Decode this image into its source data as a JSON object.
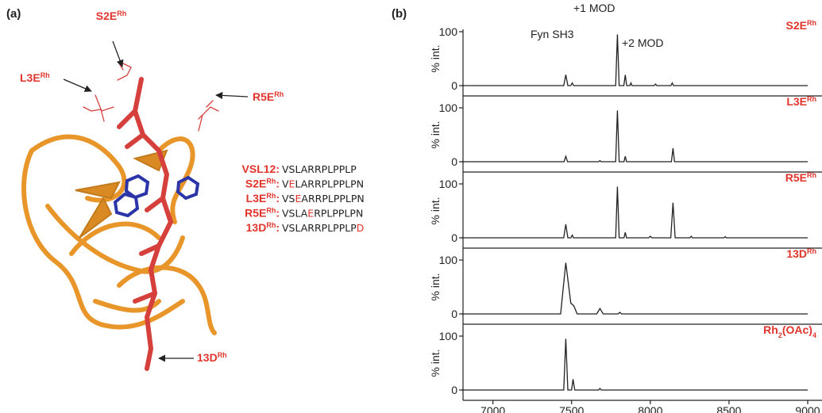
{
  "panel_a": {
    "label": "(a)",
    "callouts": [
      [
        {
          "text": "S2E"
        },
        {
          "text": "Rh",
          "sup": true
        }
      ],
      [
        {
          "text": "L3E"
        },
        {
          "text": "Rh",
          "sup": true
        }
      ],
      [
        {
          "text": "R5E"
        },
        {
          "text": "Rh",
          "sup": true
        }
      ],
      [
        {
          "text": "13D"
        },
        {
          "text": "Rh",
          "sup": true
        }
      ]
    ],
    "sequences": [
      {
        "name": [
          {
            "text": "VSL12:"
          }
        ],
        "parts": [
          {
            "text": "VSLARRPLPPLP"
          }
        ]
      },
      {
        "name": [
          {
            "text": "S2E"
          },
          {
            "text": "Rh",
            "sup": true
          },
          {
            "text": ":"
          }
        ],
        "parts": [
          {
            "text": "V"
          },
          {
            "text": "E",
            "mutated": true
          },
          {
            "text": "LARRPLPPLPN"
          }
        ]
      },
      {
        "name": [
          {
            "text": "L3E"
          },
          {
            "text": "Rh",
            "sup": true
          },
          {
            "text": ":"
          }
        ],
        "parts": [
          {
            "text": "VS"
          },
          {
            "text": "E",
            "mutated": true
          },
          {
            "text": "ARRPLPPLPN"
          }
        ]
      },
      {
        "name": [
          {
            "text": "R5E"
          },
          {
            "text": "Rh",
            "sup": true
          },
          {
            "text": ":"
          }
        ],
        "parts": [
          {
            "text": "VSLA"
          },
          {
            "text": "E",
            "mutated": true
          },
          {
            "text": "RPLPPLPN"
          }
        ]
      },
      {
        "name": [
          {
            "text": "13D"
          },
          {
            "text": "Rh",
            "sup": true
          },
          {
            "text": ":"
          }
        ],
        "parts": [
          {
            "text": "VSLARRPLPPLP"
          },
          {
            "text": "D",
            "mutated": true
          }
        ]
      }
    ]
  },
  "panel_b": {
    "label": "(b)"
  },
  "chart_data": [
    {
      "type": "line",
      "title": [
        {
          "text": "S2E"
        },
        {
          "text": "Rh",
          "sup": true
        }
      ],
      "ylabel": "% int.",
      "color": "#222222",
      "annotations": [
        "Fyn SH3",
        "+1 MOD",
        "+2 MOD"
      ],
      "x": [
        6800,
        7450,
        7463,
        7476,
        7495,
        7504,
        7513,
        7780,
        7791,
        7802,
        7832,
        7841,
        7850,
        7870,
        7877,
        7884,
        8025,
        8033,
        8041,
        8131,
        8139,
        8147,
        9000
      ],
      "values": [
        0,
        0,
        20,
        0,
        0,
        5,
        0,
        0,
        95,
        0,
        0,
        20,
        0,
        0,
        5,
        0,
        0,
        3,
        0,
        0,
        5,
        0,
        0
      ],
      "xlim": [
        6800,
        9000
      ],
      "ylim": [
        0,
        100
      ],
      "yticks": [
        0,
        100
      ]
    },
    {
      "type": "line",
      "title": [
        {
          "text": "L3E"
        },
        {
          "text": "Rh",
          "sup": true
        }
      ],
      "ylabel": "% int.",
      "color": "#222222",
      "x": [
        6800,
        7452,
        7463,
        7474,
        7672,
        7680,
        7688,
        7780,
        7791,
        7802,
        7833,
        7841,
        7849,
        8134,
        8144,
        8154,
        9000
      ],
      "values": [
        0,
        0,
        10,
        0,
        0,
        2,
        0,
        0,
        95,
        0,
        0,
        10,
        0,
        0,
        25,
        0,
        0
      ],
      "xlim": [
        6800,
        9000
      ],
      "ylim": [
        0,
        100
      ],
      "yticks": [
        0,
        100
      ]
    },
    {
      "type": "line",
      "title": [
        {
          "text": "R5E"
        },
        {
          "text": "Rh",
          "sup": true
        }
      ],
      "ylabel": "% int.",
      "color": "#222222",
      "x": [
        6800,
        7450,
        7463,
        7476,
        7496,
        7504,
        7512,
        7780,
        7791,
        7802,
        7833,
        7841,
        7849,
        7990,
        8000,
        8010,
        8130,
        8144,
        8158,
        8252,
        8260,
        8268,
        8468,
        8476,
        8484,
        9000
      ],
      "values": [
        0,
        0,
        25,
        0,
        0,
        5,
        0,
        0,
        95,
        0,
        0,
        10,
        0,
        0,
        3,
        0,
        0,
        65,
        0,
        0,
        3,
        0,
        0,
        2,
        0,
        0
      ],
      "xlim": [
        6800,
        9000
      ],
      "ylim": [
        0,
        100
      ],
      "yticks": [
        0,
        100
      ]
    },
    {
      "type": "line",
      "title": [
        {
          "text": "13D"
        },
        {
          "text": "Rh",
          "sup": true
        }
      ],
      "ylabel": "% int.",
      "color": "#222222",
      "x": [
        6800,
        7430,
        7463,
        7495,
        7514,
        7535,
        7660,
        7680,
        7700,
        7795,
        7806,
        7817,
        9000
      ],
      "values": [
        0,
        0,
        95,
        20,
        15,
        0,
        0,
        10,
        0,
        0,
        3,
        0,
        0
      ],
      "xlim": [
        6800,
        9000
      ],
      "ylim": [
        0,
        100
      ],
      "yticks": [
        0,
        100
      ]
    },
    {
      "type": "line",
      "title": [
        {
          "text": "Rh"
        },
        {
          "text": "2",
          "sub": true
        },
        {
          "text": "(OAc)"
        },
        {
          "text": "4",
          "sub": true
        }
      ],
      "ylabel": "% int.",
      "color": "#222222",
      "x": [
        6800,
        7450,
        7463,
        7476,
        7500,
        7509,
        7520,
        7672,
        7680,
        7688,
        9000
      ],
      "values": [
        0,
        0,
        95,
        0,
        0,
        20,
        0,
        0,
        3,
        0,
        0
      ],
      "xlim": [
        6800,
        9000
      ],
      "ylim": [
        0,
        100
      ],
      "yticks": [
        0,
        100
      ],
      "xticks": [
        7000,
        7500,
        8000,
        8500,
        9000
      ]
    }
  ]
}
